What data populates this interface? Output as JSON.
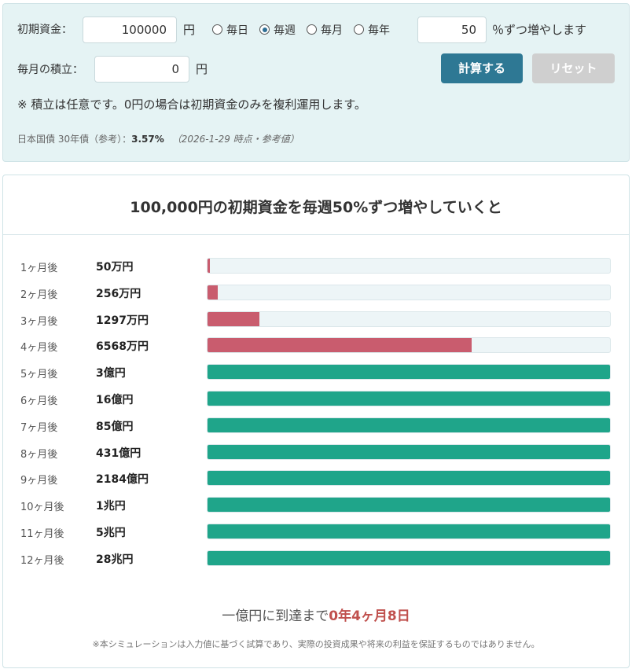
{
  "form": {
    "initial_label": "初期資金：",
    "initial_value": "100000",
    "initial_unit": "円",
    "periods": [
      "毎日",
      "毎週",
      "毎月",
      "毎年"
    ],
    "selected_period": 1,
    "rate_value": "50",
    "rate_suffix": "％ずつ増やします",
    "monthly_label": "毎月の積立：",
    "monthly_value": "0",
    "monthly_unit": "円",
    "calc_button": "計算する",
    "reset_button": "リセット",
    "note": "※ 積立は任意です。0円の場合は初期資金のみを複利運用します。",
    "bond_label": "日本国債 30年債（参考）：",
    "bond_value": "3.57%",
    "bond_date": "（2026-1-29 時点・参考値）"
  },
  "result": {
    "title": "100,000円の初期資金を毎週50%ずつ増やしていくと",
    "xlim": [
      0,
      100000000
    ],
    "colors": {
      "below": "#c95c6e",
      "above": "#1fa58a",
      "track": "#edf5f7"
    },
    "rows": [
      {
        "label": "1ヶ月後",
        "value": 500000,
        "value_label": "50万円"
      },
      {
        "label": "2ヶ月後",
        "value": 2560000,
        "value_label": "256万円"
      },
      {
        "label": "3ヶ月後",
        "value": 12970000,
        "value_label": "1297万円"
      },
      {
        "label": "4ヶ月後",
        "value": 65680000,
        "value_label": "6568万円"
      },
      {
        "label": "5ヶ月後",
        "value": 300000000,
        "value_label": "3億円"
      },
      {
        "label": "6ヶ月後",
        "value": 1600000000,
        "value_label": "16億円"
      },
      {
        "label": "7ヶ月後",
        "value": 8500000000,
        "value_label": "85億円"
      },
      {
        "label": "8ヶ月後",
        "value": 43100000000,
        "value_label": "431億円"
      },
      {
        "label": "9ヶ月後",
        "value": 218400000000,
        "value_label": "2184億円"
      },
      {
        "label": "10ヶ月後",
        "value": 1000000000000,
        "value_label": "1兆円"
      },
      {
        "label": "11ヶ月後",
        "value": 5000000000000,
        "value_label": "5兆円"
      },
      {
        "label": "12ヶ月後",
        "value": 28000000000000,
        "value_label": "28兆円"
      }
    ],
    "summary_prefix": "一億円に到達まで",
    "summary_value": "0年4ヶ月8日",
    "disclaimer": "※本シミュレーションは入力値に基づく試算であり、実際の投資成果や将来の利益を保証するものではありません。"
  }
}
